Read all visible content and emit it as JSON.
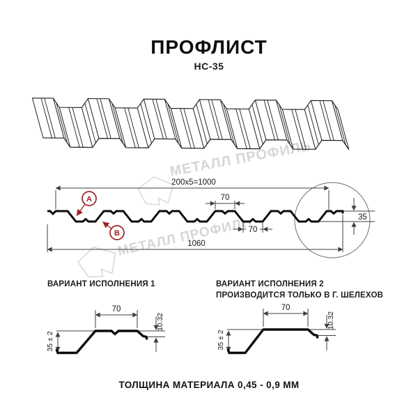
{
  "header": {
    "title": "ПРОФЛИСТ",
    "subtitle": "НС-35"
  },
  "watermark": {
    "text": "МЕТАЛЛ ПРОФИЛЬ",
    "color": "#d6d6d6"
  },
  "section_view": {
    "dim_top": "200x5=1000",
    "dim_rib_top": "70",
    "dim_rib_bottom": "70",
    "dim_total": "1060",
    "dim_height": "35",
    "callout_a": "А",
    "callout_b": "В",
    "accent_color": "#9e2121"
  },
  "variant1": {
    "title": "ВАРИАНТ ИСПОЛНЕНИЯ 1",
    "dim_width": "70",
    "dim_lip": "10.32",
    "dim_height": "35 ± 2"
  },
  "variant2": {
    "title": "ВАРИАНТ ИСПОЛНЕНИЯ 2",
    "subtitle": "ПРОИЗВОДИТСЯ ТОЛЬКО В Г. ШЕЛЕХОВ",
    "dim_width": "70",
    "dim_lip": "10.32",
    "dim_height": "35 ± 2"
  },
  "footer": {
    "text": "ТОЛЩИНА МАТЕРИАЛА 0,45 - 0,9 ММ"
  }
}
